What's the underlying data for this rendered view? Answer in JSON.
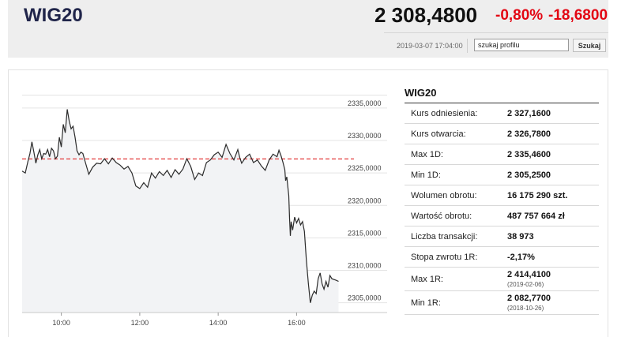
{
  "header": {
    "name": "WIG20",
    "price": "2 308,4800",
    "change_pct": "-0,80%",
    "change_abs": "-18,6800",
    "datetime": "2019-03-07 17:04:00",
    "search_value": "szukaj profilu",
    "search_button": "Szukaj",
    "change_color": "#e30613"
  },
  "table": {
    "title": "WIG20",
    "rows": [
      {
        "label": "Kurs odniesienia:",
        "value": "2 327,1600",
        "sub": ""
      },
      {
        "label": "Kurs otwarcia:",
        "value": "2 326,7800",
        "sub": ""
      },
      {
        "label": "Max 1D:",
        "value": "2 335,4600",
        "sub": ""
      },
      {
        "label": "Min 1D:",
        "value": "2 305,2500",
        "sub": ""
      },
      {
        "label": "Wolumen obrotu:",
        "value": "16 175 290 szt.",
        "sub": ""
      },
      {
        "label": "Wartość obrotu:",
        "value": "487 757 664 zł",
        "sub": ""
      },
      {
        "label": "Liczba transakcji:",
        "value": "38 973",
        "sub": ""
      },
      {
        "label": "Stopa zwrotu 1R:",
        "value": "-2,17%",
        "sub": ""
      },
      {
        "label": "Max 1R:",
        "value": "2 414,4100",
        "sub": "(2019-02-06)"
      },
      {
        "label": "Min 1R:",
        "value": "2 082,7700",
        "sub": "(2018-10-26)"
      }
    ]
  },
  "chart_data": {
    "type": "area",
    "x_ticks": [
      "10:00",
      "12:00",
      "14:00",
      "16:00"
    ],
    "x_tick_hours": [
      10,
      12,
      14,
      16
    ],
    "y_ticks": [
      "2335,0000",
      "2330,0000",
      "2325,0000",
      "2320,0000",
      "2315,0000",
      "2310,0000",
      "2305,0000"
    ],
    "y_tick_values": [
      2335,
      2330,
      2325,
      2320,
      2315,
      2310,
      2305
    ],
    "xlim": [
      9.0,
      17.1
    ],
    "ylim": [
      2303.5,
      2339.0
    ],
    "reference_value": 2327.16,
    "reference_color": "#e23b3b",
    "line_color": "#2b2b2b",
    "fill_color": "#f2f3f5",
    "grid": "horizontal",
    "series": [
      {
        "values": [
          [
            9.0,
            2325.3
          ],
          [
            9.08,
            2325.0
          ],
          [
            9.15,
            2326.8
          ],
          [
            9.2,
            2328.0
          ],
          [
            9.25,
            2329.8
          ],
          [
            9.3,
            2328.2
          ],
          [
            9.35,
            2326.5
          ],
          [
            9.4,
            2327.8
          ],
          [
            9.45,
            2328.6
          ],
          [
            9.5,
            2327.2
          ],
          [
            9.55,
            2328.0
          ],
          [
            9.6,
            2327.9
          ],
          [
            9.65,
            2328.6
          ],
          [
            9.7,
            2327.5
          ],
          [
            9.75,
            2328.8
          ],
          [
            9.8,
            2328.4
          ],
          [
            9.85,
            2327.2
          ],
          [
            9.9,
            2327.6
          ],
          [
            9.95,
            2330.5
          ],
          [
            10.0,
            2329.0
          ],
          [
            10.05,
            2332.5
          ],
          [
            10.1,
            2331.2
          ],
          [
            10.15,
            2334.8
          ],
          [
            10.2,
            2333.0
          ],
          [
            10.25,
            2331.8
          ],
          [
            10.3,
            2332.2
          ],
          [
            10.35,
            2330.5
          ],
          [
            10.4,
            2328.4
          ],
          [
            10.45,
            2327.8
          ],
          [
            10.5,
            2328.2
          ],
          [
            10.55,
            2328.0
          ],
          [
            10.6,
            2326.9
          ],
          [
            10.7,
            2324.8
          ],
          [
            10.8,
            2325.9
          ],
          [
            10.9,
            2326.5
          ],
          [
            11.0,
            2326.4
          ],
          [
            11.1,
            2327.2
          ],
          [
            11.2,
            2326.4
          ],
          [
            11.3,
            2327.3
          ],
          [
            11.4,
            2326.6
          ],
          [
            11.5,
            2326.2
          ],
          [
            11.6,
            2325.6
          ],
          [
            11.7,
            2326.0
          ],
          [
            11.8,
            2325.0
          ],
          [
            11.9,
            2323.0
          ],
          [
            12.0,
            2322.6
          ],
          [
            12.1,
            2323.5
          ],
          [
            12.2,
            2322.8
          ],
          [
            12.3,
            2325.0
          ],
          [
            12.4,
            2324.2
          ],
          [
            12.5,
            2325.2
          ],
          [
            12.6,
            2324.6
          ],
          [
            12.7,
            2325.4
          ],
          [
            12.8,
            2324.3
          ],
          [
            12.9,
            2325.5
          ],
          [
            13.0,
            2324.8
          ],
          [
            13.1,
            2325.6
          ],
          [
            13.2,
            2327.2
          ],
          [
            13.3,
            2326.0
          ],
          [
            13.4,
            2324.0
          ],
          [
            13.5,
            2325.0
          ],
          [
            13.6,
            2324.6
          ],
          [
            13.7,
            2326.6
          ],
          [
            13.8,
            2327.0
          ],
          [
            13.9,
            2327.8
          ],
          [
            14.0,
            2328.2
          ],
          [
            14.1,
            2327.4
          ],
          [
            14.2,
            2329.4
          ],
          [
            14.3,
            2328.0
          ],
          [
            14.4,
            2327.0
          ],
          [
            14.5,
            2328.6
          ],
          [
            14.55,
            2327.4
          ],
          [
            14.6,
            2326.5
          ],
          [
            14.7,
            2327.4
          ],
          [
            14.8,
            2327.9
          ],
          [
            14.9,
            2326.6
          ],
          [
            15.0,
            2327.0
          ],
          [
            15.1,
            2326.1
          ],
          [
            15.2,
            2325.4
          ],
          [
            15.3,
            2327.0
          ],
          [
            15.4,
            2327.9
          ],
          [
            15.5,
            2327.5
          ],
          [
            15.55,
            2328.5
          ],
          [
            15.6,
            2327.7
          ],
          [
            15.65,
            2326.7
          ],
          [
            15.7,
            2325.5
          ],
          [
            15.72,
            2323.8
          ],
          [
            15.75,
            2324.4
          ],
          [
            15.8,
            2321.5
          ],
          [
            15.82,
            2318.0
          ],
          [
            15.84,
            2315.3
          ],
          [
            15.86,
            2317.5
          ],
          [
            15.9,
            2316.2
          ],
          [
            15.95,
            2318.2
          ],
          [
            16.0,
            2317.3
          ],
          [
            16.05,
            2318.0
          ],
          [
            16.1,
            2317.0
          ],
          [
            16.15,
            2317.5
          ],
          [
            16.2,
            2316.0
          ],
          [
            16.25,
            2311.5
          ],
          [
            16.3,
            2308.0
          ],
          [
            16.35,
            2305.0
          ],
          [
            16.4,
            2306.2
          ],
          [
            16.45,
            2306.8
          ],
          [
            16.5,
            2306.4
          ],
          [
            16.55,
            2308.7
          ],
          [
            16.6,
            2309.6
          ],
          [
            16.65,
            2307.9
          ],
          [
            16.7,
            2307.1
          ],
          [
            16.75,
            2308.3
          ],
          [
            16.8,
            2307.4
          ],
          [
            16.85,
            2309.2
          ],
          [
            16.9,
            2308.7
          ],
          [
            17.0,
            2308.5
          ],
          [
            17.07,
            2308.3
          ]
        ]
      }
    ]
  }
}
